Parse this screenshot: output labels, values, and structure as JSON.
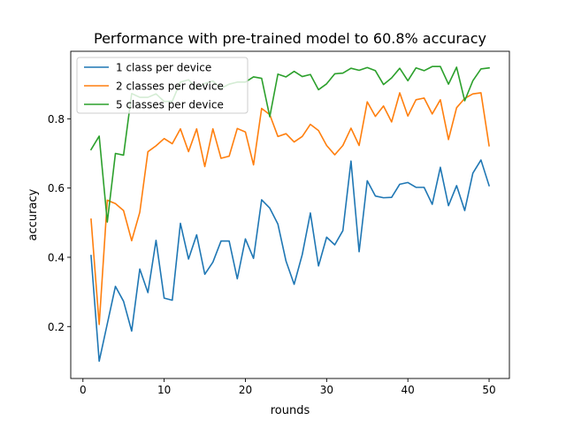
{
  "chart_data": {
    "type": "line",
    "title": "Performance with pre-trained model to 60.8% accuracy",
    "xlabel": "rounds",
    "ylabel": "accuracy",
    "xlim": [
      -1.5,
      52.5
    ],
    "ylim": [
      0.05,
      0.995
    ],
    "xticks": [
      0,
      10,
      20,
      30,
      40,
      50
    ],
    "yticks": [
      0.2,
      0.4,
      0.6,
      0.8
    ],
    "ytick_labels": [
      "0.2",
      "0.4",
      "0.6",
      "0.8"
    ],
    "grid": false,
    "legend_position": "top-left",
    "x": [
      1,
      2,
      3,
      4,
      5,
      6,
      7,
      8,
      9,
      10,
      11,
      12,
      13,
      14,
      15,
      16,
      17,
      18,
      19,
      20,
      21,
      22,
      23,
      24,
      25,
      26,
      27,
      28,
      29,
      30,
      31,
      32,
      33,
      34,
      35,
      36,
      37,
      38,
      39,
      40,
      41,
      42,
      43,
      44,
      45,
      46,
      47,
      48,
      49,
      50
    ],
    "series": [
      {
        "name": "1 class per device",
        "color": "#1f77b4",
        "values": [
          0.405,
          0.1,
          0.208,
          0.316,
          0.273,
          0.187,
          0.366,
          0.298,
          0.449,
          0.282,
          0.276,
          0.498,
          0.395,
          0.465,
          0.351,
          0.386,
          0.447,
          0.447,
          0.338,
          0.453,
          0.397,
          0.566,
          0.542,
          0.496,
          0.389,
          0.322,
          0.408,
          0.528,
          0.375,
          0.458,
          0.436,
          0.477,
          0.678,
          0.416,
          0.621,
          0.577,
          0.572,
          0.573,
          0.611,
          0.616,
          0.602,
          0.602,
          0.553,
          0.66,
          0.549,
          0.607,
          0.535,
          0.643,
          0.681,
          0.607
        ]
      },
      {
        "name": "2 classes per device",
        "color": "#ff7f0e",
        "values": [
          0.51,
          0.206,
          0.565,
          0.555,
          0.535,
          0.448,
          0.53,
          0.705,
          0.722,
          0.743,
          0.728,
          0.771,
          0.705,
          0.771,
          0.662,
          0.771,
          0.686,
          0.692,
          0.772,
          0.762,
          0.667,
          0.83,
          0.812,
          0.749,
          0.757,
          0.733,
          0.749,
          0.784,
          0.766,
          0.723,
          0.696,
          0.723,
          0.773,
          0.723,
          0.849,
          0.807,
          0.837,
          0.791,
          0.875,
          0.808,
          0.855,
          0.86,
          0.814,
          0.855,
          0.74,
          0.832,
          0.859,
          0.872,
          0.875,
          0.722
        ]
      },
      {
        "name": "5 classes per device",
        "color": "#2ca02c",
        "values": [
          0.711,
          0.75,
          0.502,
          0.7,
          0.695,
          0.873,
          0.862,
          0.862,
          0.872,
          0.85,
          0.851,
          0.906,
          0.913,
          0.887,
          0.902,
          0.909,
          0.888,
          0.9,
          0.906,
          0.906,
          0.921,
          0.917,
          0.806,
          0.929,
          0.921,
          0.937,
          0.922,
          0.928,
          0.884,
          0.901,
          0.93,
          0.932,
          0.946,
          0.94,
          0.948,
          0.939,
          0.899,
          0.918,
          0.946,
          0.91,
          0.947,
          0.939,
          0.951,
          0.951,
          0.9,
          0.949,
          0.852,
          0.91,
          0.944,
          0.947
        ]
      }
    ]
  }
}
